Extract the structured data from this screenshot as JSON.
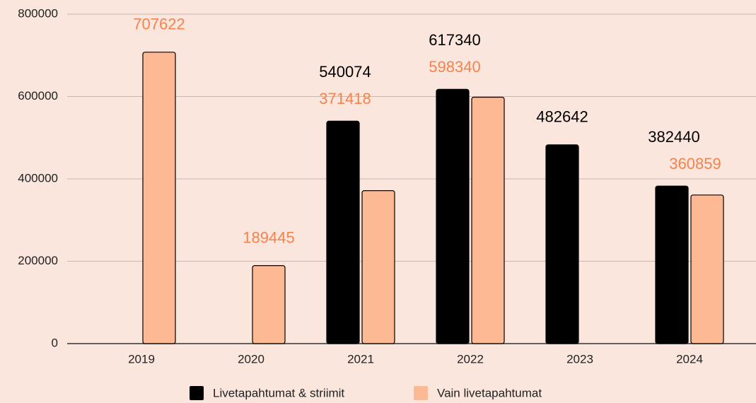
{
  "chart_data": {
    "type": "bar",
    "categories": [
      "2019",
      "2020",
      "2021",
      "2022",
      "2023",
      "2024"
    ],
    "series": [
      {
        "name": "Livetapahtumat & striimit",
        "color": "#000000",
        "label_color": "#000000",
        "values": [
          null,
          null,
          540074,
          617340,
          482642,
          382440
        ]
      },
      {
        "name": "Vain livetapahtumat",
        "color": "#fdb894",
        "label_color": "#f4834e",
        "values": [
          707622,
          189445,
          371418,
          598340,
          null,
          360859
        ]
      }
    ],
    "ylim": [
      0,
      800000
    ],
    "yticks": [
      0,
      200000,
      400000,
      600000,
      800000
    ],
    "grid": true,
    "legend": "bottom"
  }
}
